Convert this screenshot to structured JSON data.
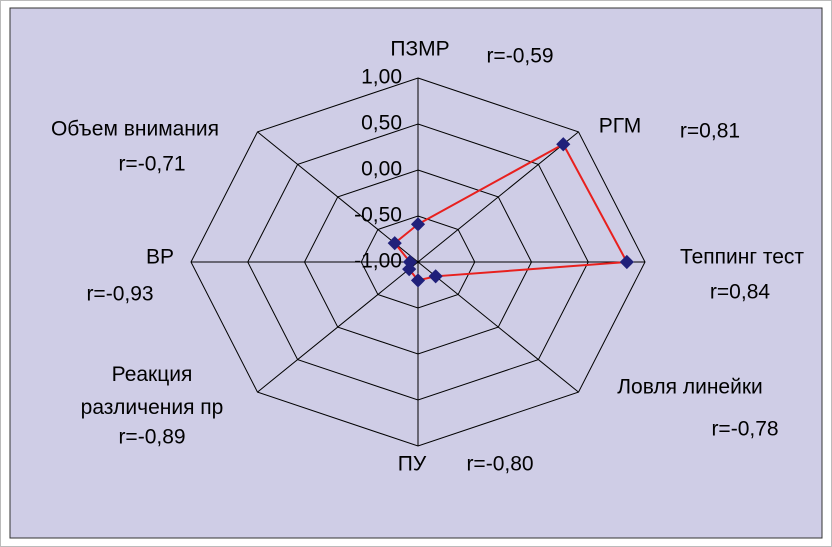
{
  "chart_data": {
    "type": "radar",
    "categories": [
      "ПЗМР",
      "РГМ",
      "Теппинг тест",
      "Ловля линейки",
      "ПУ",
      "Реакция различения пр",
      "ВР",
      "Объем внимания"
    ],
    "values": [
      -0.59,
      0.81,
      0.84,
      -0.78,
      -0.8,
      -0.89,
      -0.93,
      -0.71
    ],
    "value_labels": [
      "r=-0,59",
      "r=0,81",
      "r=0,84",
      "r=-0,78",
      "r=-0,80",
      "r=-0,89",
      "r=-0,93",
      "r=-0,71"
    ],
    "color": "#e8201e",
    "marker_color": "#20207a",
    "rlim": [
      -1,
      1
    ],
    "rticks": [
      {
        "value": -1,
        "label": "-1,00"
      },
      {
        "value": -0.5,
        "label": "-0,50"
      },
      {
        "value": 0,
        "label": "0,00"
      },
      {
        "value": 0.5,
        "label": "0,50"
      },
      {
        "value": 1,
        "label": "1,00"
      }
    ],
    "grid": true
  }
}
